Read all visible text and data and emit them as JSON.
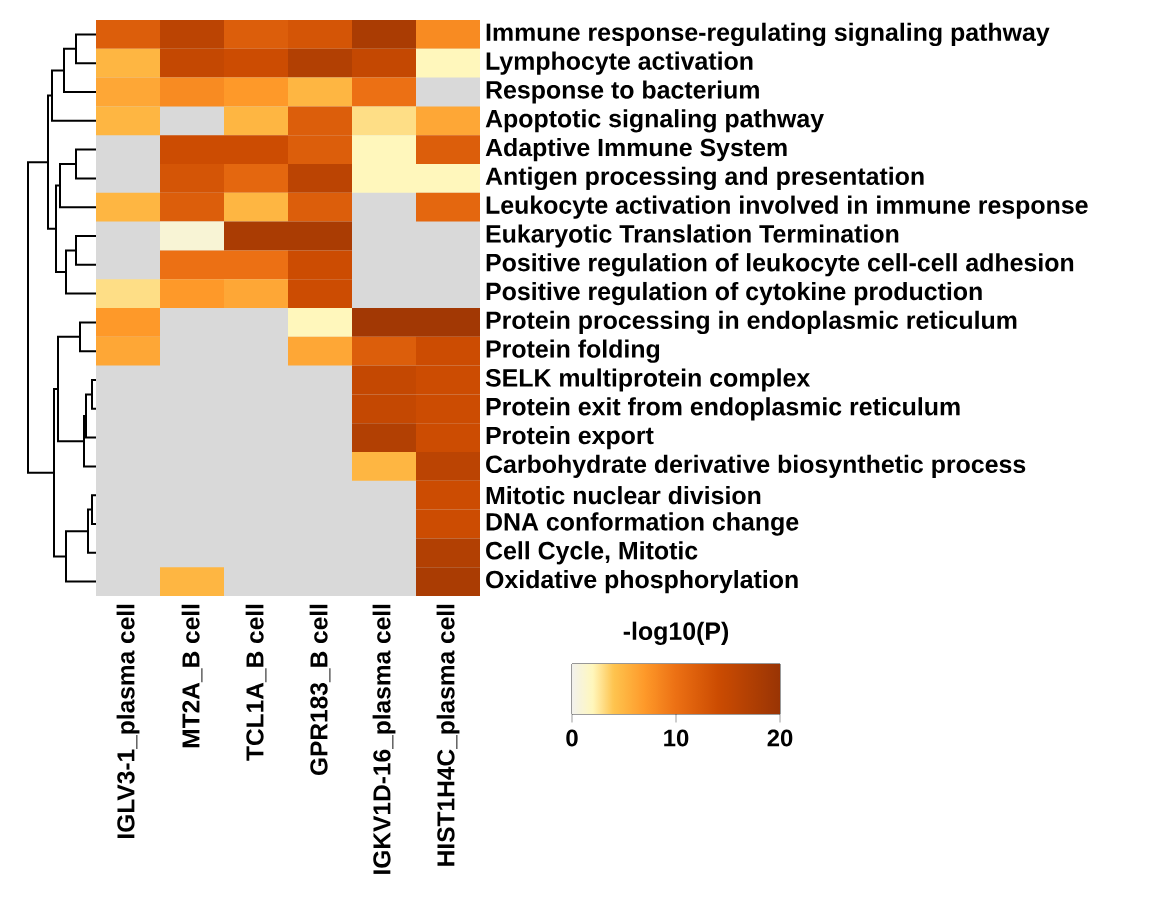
{
  "chart_data": {
    "type": "heatmap",
    "clabel": "-log10(P)",
    "categories": [
      "IGLV3-1_plasma cell",
      "MT2A_B cell",
      "TCL1A_B cell",
      "GPR183_B cell",
      "IGKV1D-16_plasma cell",
      "HIST1H4C_plasma cell"
    ],
    "y_categories": [
      "Immune response-regulating signaling pathway",
      "Lymphocyte activation",
      "Response to bacterium",
      "Apoptotic signaling pathway",
      "Adaptive Immune System",
      "Antigen processing and presentation",
      "Leukocyte activation involved in immune response",
      "Eukaryotic Translation Termination",
      "Positive regulation of leukocyte cell-cell adhesion",
      "Positive regulation of cytokine production",
      "Protein processing in endoplasmic reticulum",
      "Protein folding",
      "SELK multiprotein complex",
      "Protein exit from endoplasmic reticulum",
      "Protein export",
      "Carbohydrate derivative biosynthetic process",
      "Mitotic nuclear division",
      "DNA conformation change",
      "Cell Cycle, Mitotic",
      "Oxidative phosphorylation"
    ],
    "cells": [
      [
        12,
        16,
        12,
        13,
        18,
        8
      ],
      [
        5,
        15,
        14,
        17,
        15,
        2
      ],
      [
        6,
        8,
        7,
        5,
        10,
        null
      ],
      [
        5,
        null,
        5,
        12,
        3,
        6
      ],
      [
        null,
        14,
        14,
        12,
        2,
        12
      ],
      [
        null,
        13,
        11,
        16,
        2,
        2
      ],
      [
        5,
        12,
        5,
        12,
        null,
        11
      ],
      [
        null,
        1,
        18,
        18,
        null,
        null
      ],
      [
        null,
        10,
        10,
        14,
        null,
        null
      ],
      [
        3,
        7,
        6,
        14,
        null,
        null
      ],
      [
        7,
        null,
        null,
        2,
        19,
        19
      ],
      [
        6,
        null,
        null,
        6,
        12,
        14
      ],
      [
        null,
        null,
        null,
        null,
        15,
        14
      ],
      [
        null,
        null,
        null,
        null,
        15,
        14
      ],
      [
        null,
        null,
        null,
        null,
        17,
        14
      ],
      [
        null,
        null,
        null,
        null,
        5,
        16
      ],
      [
        null,
        null,
        null,
        null,
        null,
        14
      ],
      [
        null,
        null,
        null,
        null,
        null,
        14
      ],
      [
        null,
        null,
        null,
        null,
        null,
        17
      ],
      [
        null,
        5,
        null,
        null,
        null,
        18
      ]
    ],
    "clim": [
      0,
      20
    ],
    "cticks": [
      0,
      10,
      20
    ]
  }
}
